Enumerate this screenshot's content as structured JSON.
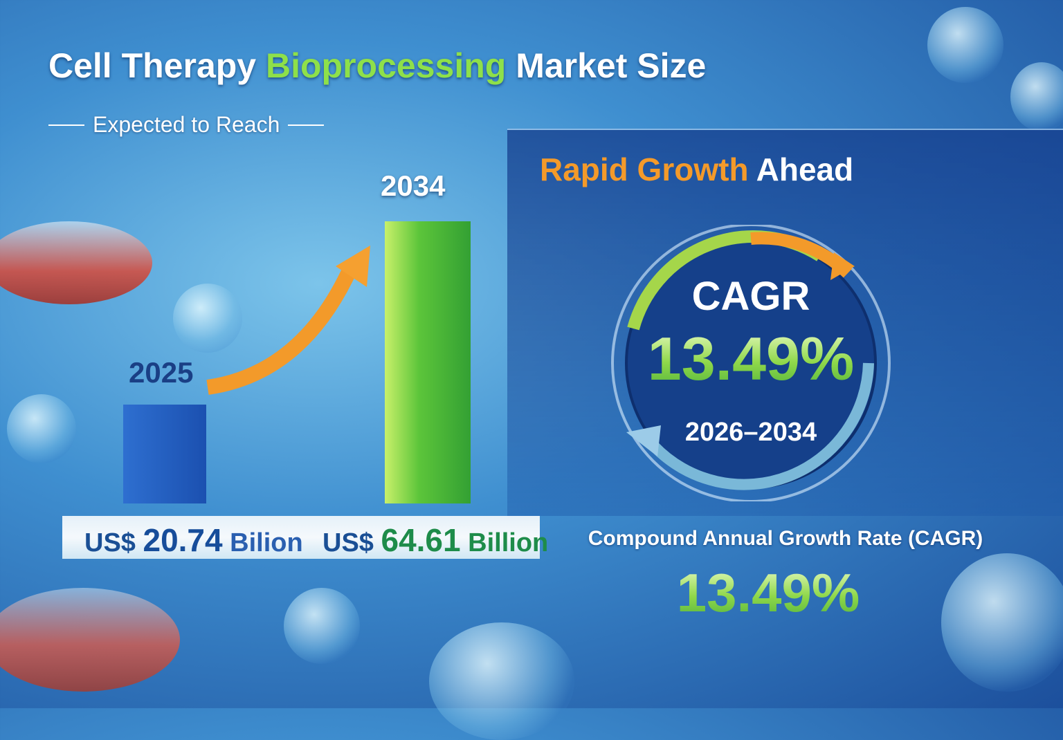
{
  "title": {
    "part1": "Cell Therapy ",
    "highlight": "Bioprocessing",
    "part2": " Market Size"
  },
  "subtitle": "Expected to Reach",
  "chart_data": {
    "type": "bar",
    "categories": [
      "2025",
      "2034"
    ],
    "values": [
      20.74,
      64.61
    ],
    "value_labels": [
      {
        "prefix": "US$ ",
        "number": "20.74",
        "unit": " Bilion"
      },
      {
        "prefix": "US$ ",
        "number": "64.61",
        "unit": " Billion"
      }
    ],
    "ylabel": "",
    "colors": [
      "#2563c4",
      "#5cc53a"
    ]
  },
  "panel": {
    "heading_highlight": "Rapid Growth",
    "heading_rest": " Ahead",
    "cagr_label": "CAGR",
    "cagr_value": "13.49%",
    "period": "2026–2034"
  },
  "footer": {
    "label": "Compound Annual Growth Rate (CAGR)",
    "value": "13.49%"
  }
}
